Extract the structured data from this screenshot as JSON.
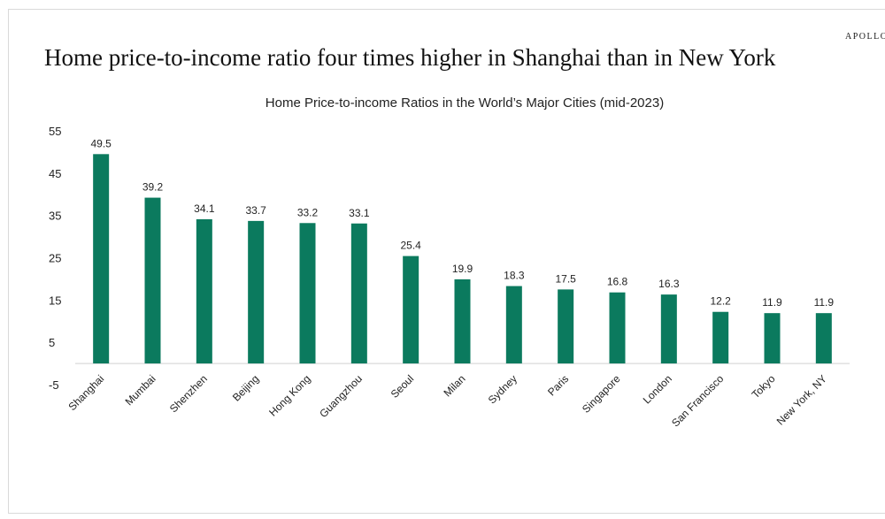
{
  "brand": "APOLLO",
  "headline": "Home price-to-income ratio four times higher in Shanghai than in New York",
  "chart_data": {
    "type": "bar",
    "title": "Home Price-to-income Ratios in the World’s Major Cities (mid-2023)",
    "xlabel": "",
    "ylabel": "",
    "ylim": [
      -5,
      55
    ],
    "yticks": [
      -5,
      5,
      15,
      25,
      35,
      45,
      55
    ],
    "grid": false,
    "legend": "none",
    "bar_color": "#0b7a5e",
    "categories": [
      "Shanghai",
      "Mumbai",
      "Shenzhen",
      "Beijing",
      "Hong Kong",
      "Guangzhou",
      "Seoul",
      "Milan",
      "Sydney",
      "Paris",
      "Singapore",
      "London",
      "San Francisco",
      "Tokyo",
      "New York, NY"
    ],
    "values": [
      49.5,
      39.2,
      34.1,
      33.7,
      33.2,
      33.1,
      25.4,
      19.9,
      18.3,
      17.5,
      16.8,
      16.3,
      12.2,
      11.9,
      11.9
    ],
    "data_labels": [
      "49.5",
      "39.2",
      "34.1",
      "33.7",
      "33.2",
      "33.1",
      "25.4",
      "19.9",
      "18.3",
      "17.5",
      "16.8",
      "16.3",
      "12.2",
      "11.9",
      "11.9"
    ]
  }
}
